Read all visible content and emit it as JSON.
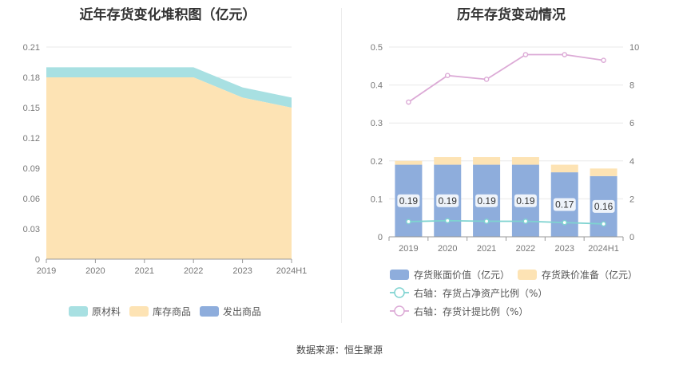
{
  "left_chart_title": "近年存货变化堆积图（亿元）",
  "right_chart_title": "历年存货变动情况",
  "source": "数据来源：恒生聚源",
  "colors": {
    "raw_material": "#a8e0e2",
    "finished_goods": "#fde3b4",
    "shipped_goods": "#8eaddc",
    "bar_value": "#8eaddc",
    "bar_reserve": "#fde3b4",
    "line_ratio_net": "#7ed3d0",
    "line_ratio_provision": "#dcaad6",
    "grid": "#e8e8e8"
  },
  "chart_data": [
    {
      "type": "area",
      "title": "近年存货变化堆积图（亿元）",
      "x": [
        "2019",
        "2020",
        "2021",
        "2022",
        "2023",
        "2024H1"
      ],
      "ylim": [
        0,
        0.21
      ],
      "yticks": [
        "0",
        "0.03",
        "0.06",
        "0.09",
        "0.12",
        "0.15",
        "0.18",
        "0.21"
      ],
      "series": [
        {
          "name": "发出商品",
          "values": [
            0,
            0,
            0,
            0,
            0,
            0
          ]
        },
        {
          "name": "库存商品",
          "values": [
            0.18,
            0.18,
            0.18,
            0.18,
            0.16,
            0.15
          ]
        },
        {
          "name": "原材料",
          "values": [
            0.01,
            0.01,
            0.01,
            0.01,
            0.01,
            0.01
          ]
        }
      ],
      "legend": [
        "原材料",
        "库存商品",
        "发出商品"
      ],
      "legend_position": "bottom",
      "grid": true
    },
    {
      "type": "bar",
      "title": "历年存货变动情况",
      "categories": [
        "2019",
        "2020",
        "2021",
        "2022",
        "2023",
        "2024H1"
      ],
      "ylim": [
        0,
        0.5
      ],
      "yticks": [
        "0",
        "0.1",
        "0.2",
        "0.3",
        "0.4",
        "0.5"
      ],
      "y2lim": [
        0,
        10
      ],
      "y2ticks": [
        "0",
        "2",
        "4",
        "6",
        "8",
        "10"
      ],
      "series": [
        {
          "name": "存货账面价值（亿元）",
          "values": [
            0.19,
            0.19,
            0.19,
            0.19,
            0.17,
            0.16
          ],
          "labels": [
            "0.19",
            "0.19",
            "0.19",
            "0.19",
            "0.17",
            "0.16"
          ]
        },
        {
          "name": "存货跌价准备（亿元）",
          "values": [
            0.01,
            0.02,
            0.02,
            0.02,
            0.02,
            0.02
          ]
        },
        {
          "name": "右轴：存货占净资产比例（%）",
          "axis": "right",
          "values": [
            0.8,
            0.85,
            0.82,
            0.82,
            0.75,
            0.68
          ]
        },
        {
          "name": "右轴：存货计提比例（%）",
          "axis": "right",
          "values": [
            7.1,
            8.5,
            8.3,
            9.6,
            9.6,
            9.3
          ]
        }
      ],
      "legend_position": "bottom",
      "grid": true
    }
  ]
}
